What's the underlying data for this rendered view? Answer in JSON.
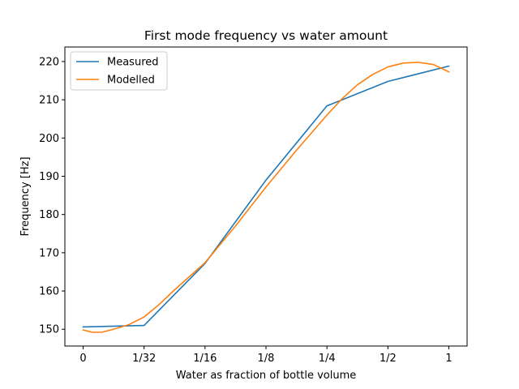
{
  "chart_data": {
    "type": "line",
    "title": "First mode frequency vs water amount",
    "xlabel": "Water as fraction of bottle volume",
    "ylabel": "Frequency [Hz]",
    "x_tick_labels": [
      "0",
      "1/32",
      "1/16",
      "1/8",
      "1/4",
      "1/2",
      "1"
    ],
    "y_ticks": [
      150,
      160,
      170,
      180,
      190,
      200,
      210,
      220
    ],
    "ylim": [
      145.6,
      223.8
    ],
    "xlim": [
      -0.3,
      6.3
    ],
    "grid": false,
    "legend_position": "top-left",
    "series": [
      {
        "name": "Measured",
        "color": "#1f77b4",
        "x": [
          0,
          1,
          2,
          3,
          4,
          5,
          6
        ],
        "y": [
          150.6,
          151.0,
          167.2,
          189.0,
          208.4,
          214.8,
          218.8
        ]
      },
      {
        "name": "Modelled",
        "color": "#ff7f0e",
        "x": [
          0,
          0.15,
          0.3,
          0.5,
          0.75,
          1.0,
          1.25,
          1.5,
          2.0,
          2.5,
          3.0,
          3.5,
          4.0,
          4.25,
          4.5,
          4.75,
          5.0,
          5.25,
          5.5,
          5.75,
          6.0
        ],
        "y": [
          149.8,
          149.2,
          149.2,
          150.0,
          151.2,
          153.2,
          156.5,
          160.3,
          167.4,
          177.0,
          187.2,
          196.8,
          206.0,
          210.3,
          213.9,
          216.6,
          218.6,
          219.6,
          219.8,
          219.2,
          217.3
        ]
      }
    ]
  }
}
